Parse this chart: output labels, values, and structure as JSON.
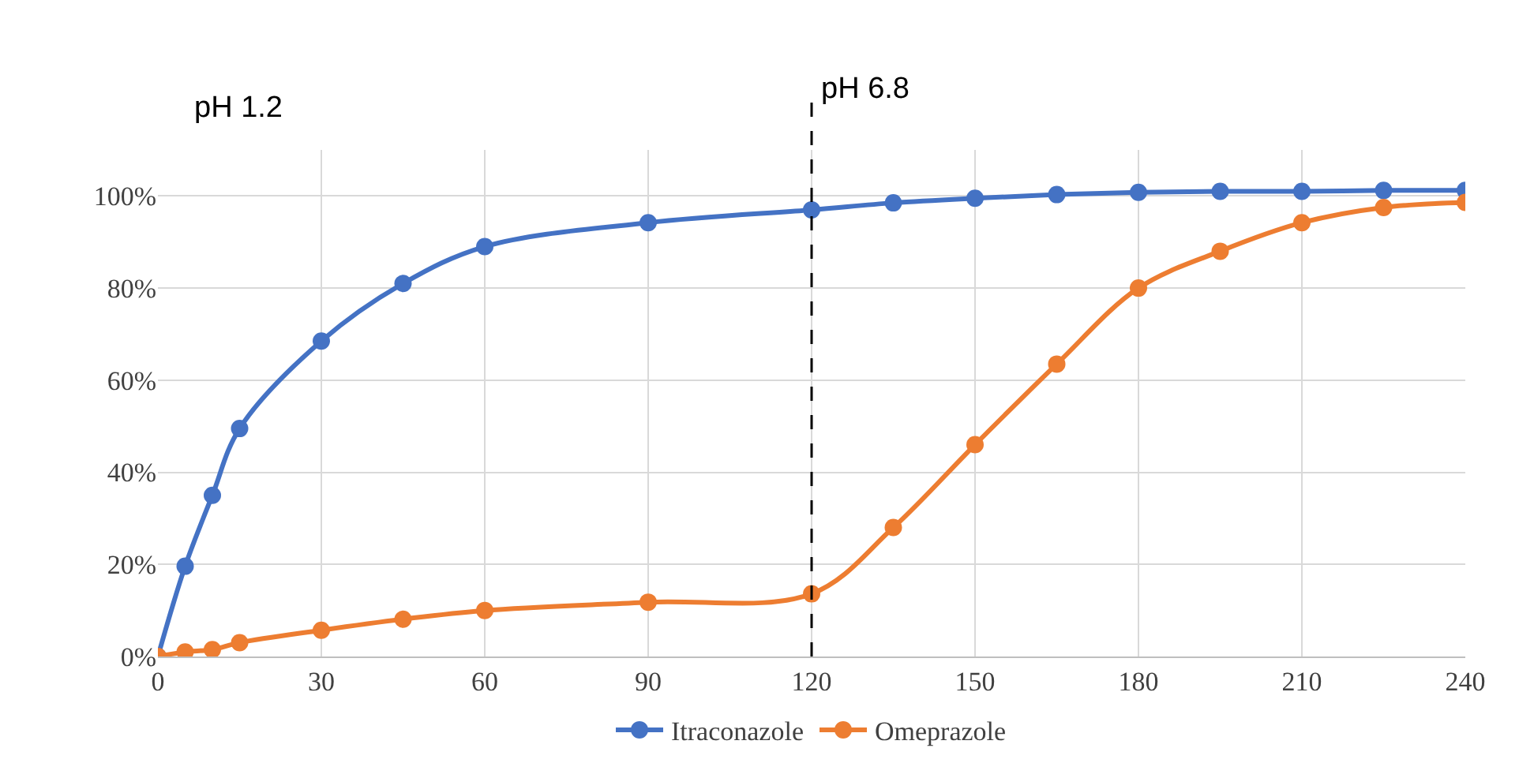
{
  "chart_data": {
    "type": "line",
    "x": [
      0,
      5,
      10,
      15,
      30,
      45,
      60,
      90,
      120,
      135,
      150,
      165,
      180,
      195,
      210,
      225,
      240
    ],
    "series": [
      {
        "name": "Itraconazole",
        "color": "#4472c4",
        "values": [
          0,
          19.6,
          35,
          49.5,
          68.5,
          81,
          89,
          94.2,
          97,
          98.5,
          99.5,
          100.3,
          100.8,
          101,
          101,
          101.2,
          101.2
        ]
      },
      {
        "name": "Omeprazole",
        "color": "#ed7d31",
        "values": [
          0,
          1,
          1.5,
          3,
          5.7,
          8.1,
          10,
          11.8,
          13.6,
          28,
          46,
          63.5,
          80,
          88,
          94.2,
          97.5,
          98.6
        ]
      }
    ],
    "xlim": [
      0,
      240
    ],
    "xticks": [
      0,
      30,
      60,
      90,
      120,
      150,
      180,
      210,
      240
    ],
    "ylim": [
      0,
      110
    ],
    "yticks": [
      {
        "value": 0,
        "label": "0%"
      },
      {
        "value": 20,
        "label": "20%"
      },
      {
        "value": 40,
        "label": "40%"
      },
      {
        "value": 60,
        "label": "60%"
      },
      {
        "value": 80,
        "label": "80%"
      },
      {
        "value": 100,
        "label": "100%"
      }
    ],
    "ref_lines": [
      {
        "axis": "x",
        "value": 120,
        "label": "pH 6.8",
        "color": "#000000",
        "line_style": "dashed"
      }
    ],
    "annotations": [
      "pH 1.2"
    ],
    "grid": true,
    "legend": "bottom",
    "marker": "circle",
    "line_style": "solid"
  }
}
